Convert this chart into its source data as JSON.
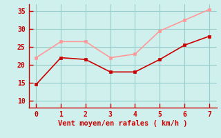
{
  "x": [
    0,
    1,
    2,
    3,
    4,
    5,
    6,
    7
  ],
  "y_moyen": [
    14.5,
    22.0,
    21.5,
    18.0,
    18.0,
    21.5,
    25.5,
    28.0
  ],
  "y_rafales": [
    22.0,
    26.5,
    26.5,
    22.0,
    23.0,
    29.5,
    32.5,
    35.5
  ],
  "color_moyen": "#cc0000",
  "color_rafales": "#ff9999",
  "xlabel": "Vent moyen/en rafales ( km/h )",
  "xlabel_color": "#cc0000",
  "xlabel_fontsize": 7.5,
  "background_color": "#cff0ec",
  "grid_color": "#99cccc",
  "tick_color": "#cc0000",
  "spine_color": "#cc0000",
  "ylim": [
    8,
    37
  ],
  "xlim": [
    -0.3,
    7.3
  ],
  "yticks": [
    10,
    15,
    20,
    25,
    30,
    35
  ],
  "xticks": [
    0,
    1,
    2,
    3,
    4,
    5,
    6,
    7
  ],
  "linewidth": 1.2,
  "markersize": 3
}
